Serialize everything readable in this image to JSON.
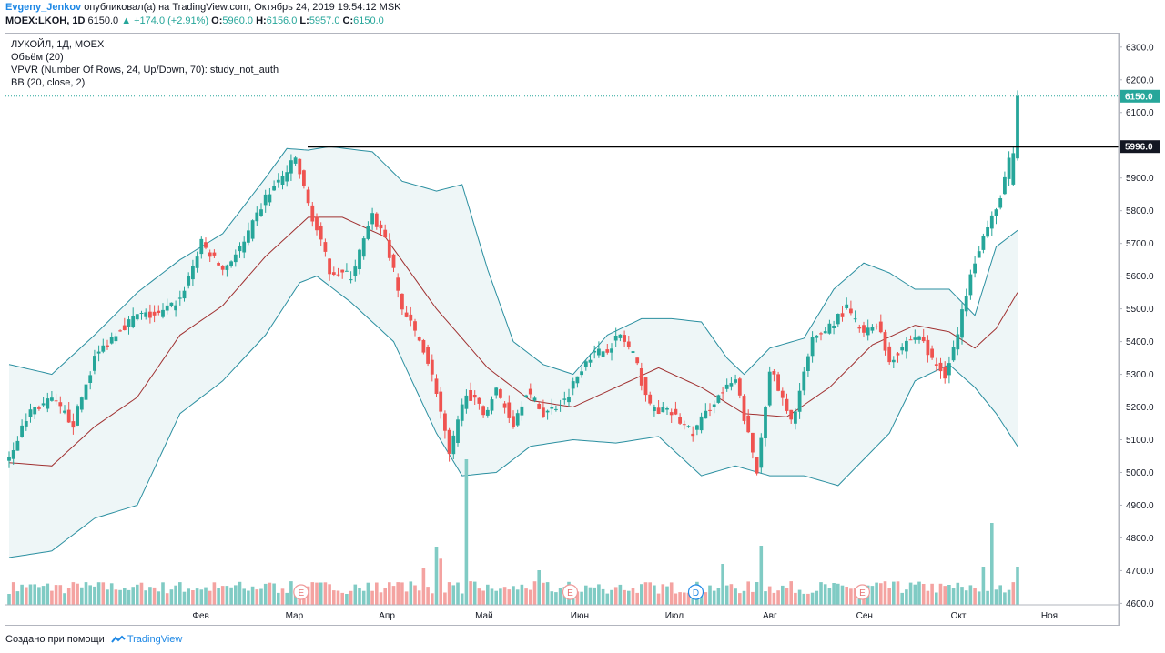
{
  "header": {
    "author": "Evgeny_Jenkov",
    "published": "опубликовал(а) на TradingView.com, Октябрь 24, 2019 19:54:12 MSK",
    "symbol_line": "MOEX:LKOH, 1D",
    "last": "6150.0",
    "change": "▲ +174.0 (+2.91%)",
    "o_label": "O:",
    "o_val": "5960.0",
    "h_label": "H:",
    "h_val": "6156.0",
    "l_label": "L:",
    "l_val": "5957.0",
    "c_label": "C:",
    "c_val": "6150.0"
  },
  "legend": {
    "line1": "ЛУКОЙЛ, 1Д, MOEX",
    "line2": "Объём (20)",
    "line3": "VPVR (Number Of Rows, 24, Up/Down, 70): study_not_auth",
    "line4": "BB (20, close, 2)"
  },
  "footer": {
    "text": "Создано при помощи",
    "brand": "TradingView"
  },
  "colors": {
    "up": "#26a69a",
    "down": "#ef5350",
    "vol_up": "#80cbc4",
    "vol_down": "#f4a3a1",
    "bb_band": "#2a8fa0",
    "bb_mid": "#a03030",
    "bb_fill": "#eef6f7",
    "accent": "#1e88e5"
  },
  "chart_data": {
    "type": "candlestick",
    "ylim": [
      4590,
      6330
    ],
    "yticks": [
      4600,
      4700,
      4800,
      4900,
      5000,
      5100,
      5200,
      5300,
      5400,
      5500,
      5600,
      5700,
      5800,
      5900,
      6000,
      6100,
      6200,
      6300
    ],
    "xlabels": [
      {
        "label": "Фев",
        "pos": 0.1
      },
      {
        "label": "Мар",
        "pos": 0.1992
      },
      {
        "label": "Апр",
        "pos": 0.2974
      },
      {
        "label": "Май",
        "pos": 0.4005
      },
      {
        "label": "Июн",
        "pos": 0.5018
      },
      {
        "label": "Июл",
        "pos": 0.6022
      },
      {
        "label": "Авг",
        "pos": 0.7035
      },
      {
        "label": "Сен",
        "pos": 0.8039
      },
      {
        "label": "Окт",
        "pos": 0.9035
      },
      {
        "label": "Ноя",
        "pos": 1.0
      }
    ],
    "price_badges": [
      {
        "value": 6150.0,
        "text": "6150.0",
        "color": "#26a69a"
      },
      {
        "value": 5996.0,
        "text": "5996.0",
        "color": "#131722"
      }
    ],
    "resistance_line": {
      "value": 5996,
      "from": "2019-04-01",
      "to": "end"
    },
    "events": [
      {
        "letter": "E",
        "pos": 0.2064
      },
      {
        "letter": "E",
        "pos": 0.4918
      },
      {
        "letter": "D",
        "pos": 0.625
      },
      {
        "letter": "E",
        "pos": 0.8015
      }
    ],
    "anchors": [
      {
        "i": 0,
        "p": 5050
      },
      {
        "i": 5,
        "p": 5190
      },
      {
        "i": 10,
        "p": 5220
      },
      {
        "i": 15,
        "p": 5150
      },
      {
        "i": 20,
        "p": 5350
      },
      {
        "i": 25,
        "p": 5430
      },
      {
        "i": 30,
        "p": 5480
      },
      {
        "i": 35,
        "p": 5480
      },
      {
        "i": 40,
        "p": 5530
      },
      {
        "i": 45,
        "p": 5700
      },
      {
        "i": 50,
        "p": 5620
      },
      {
        "i": 55,
        "p": 5700
      },
      {
        "i": 60,
        "p": 5840
      },
      {
        "i": 65,
        "p": 5920
      },
      {
        "i": 67,
        "p": 5960
      },
      {
        "i": 70,
        "p": 5820
      },
      {
        "i": 75,
        "p": 5620
      },
      {
        "i": 80,
        "p": 5600
      },
      {
        "i": 85,
        "p": 5780
      },
      {
        "i": 88,
        "p": 5720
      },
      {
        "i": 92,
        "p": 5500
      },
      {
        "i": 97,
        "p": 5380
      },
      {
        "i": 100,
        "p": 5250
      },
      {
        "i": 103,
        "p": 5050
      },
      {
        "i": 107,
        "p": 5250
      },
      {
        "i": 111,
        "p": 5180
      },
      {
        "i": 114,
        "p": 5250
      },
      {
        "i": 118,
        "p": 5150
      },
      {
        "i": 121,
        "p": 5250
      },
      {
        "i": 125,
        "p": 5180
      },
      {
        "i": 130,
        "p": 5220
      },
      {
        "i": 135,
        "p": 5350
      },
      {
        "i": 140,
        "p": 5380
      },
      {
        "i": 143,
        "p": 5420
      },
      {
        "i": 146,
        "p": 5360
      },
      {
        "i": 150,
        "p": 5200
      },
      {
        "i": 155,
        "p": 5180
      },
      {
        "i": 160,
        "p": 5120
      },
      {
        "i": 165,
        "p": 5220
      },
      {
        "i": 170,
        "p": 5280
      },
      {
        "i": 175,
        "p": 5000
      },
      {
        "i": 178,
        "p": 5320
      },
      {
        "i": 183,
        "p": 5150
      },
      {
        "i": 188,
        "p": 5400
      },
      {
        "i": 192,
        "p": 5450
      },
      {
        "i": 196,
        "p": 5500
      },
      {
        "i": 200,
        "p": 5420
      },
      {
        "i": 203,
        "p": 5460
      },
      {
        "i": 206,
        "p": 5340
      },
      {
        "i": 210,
        "p": 5400
      },
      {
        "i": 213,
        "p": 5420
      },
      {
        "i": 216,
        "p": 5340
      },
      {
        "i": 219,
        "p": 5300
      },
      {
        "i": 222,
        "p": 5420
      },
      {
        "i": 225,
        "p": 5620
      },
      {
        "i": 228,
        "p": 5720
      },
      {
        "i": 231,
        "p": 5800
      },
      {
        "i": 234,
        "p": 5950
      },
      {
        "i": 235,
        "p": 5976
      },
      {
        "i": 236,
        "p": 6150
      }
    ],
    "bb_upper": [
      {
        "i": 0,
        "p": 5330
      },
      {
        "i": 10,
        "p": 5300
      },
      {
        "i": 20,
        "p": 5420
      },
      {
        "i": 30,
        "p": 5550
      },
      {
        "i": 40,
        "p": 5650
      },
      {
        "i": 50,
        "p": 5730
      },
      {
        "i": 60,
        "p": 5900
      },
      {
        "i": 65,
        "p": 5990
      },
      {
        "i": 70,
        "p": 5985
      },
      {
        "i": 75,
        "p": 5996
      },
      {
        "i": 85,
        "p": 5980
      },
      {
        "i": 92,
        "p": 5890
      },
      {
        "i": 100,
        "p": 5860
      },
      {
        "i": 106,
        "p": 5880
      },
      {
        "i": 112,
        "p": 5620
      },
      {
        "i": 118,
        "p": 5400
      },
      {
        "i": 125,
        "p": 5330
      },
      {
        "i": 132,
        "p": 5300
      },
      {
        "i": 140,
        "p": 5420
      },
      {
        "i": 148,
        "p": 5470
      },
      {
        "i": 155,
        "p": 5470
      },
      {
        "i": 162,
        "p": 5460
      },
      {
        "i": 168,
        "p": 5350
      },
      {
        "i": 172,
        "p": 5300
      },
      {
        "i": 178,
        "p": 5380
      },
      {
        "i": 186,
        "p": 5410
      },
      {
        "i": 193,
        "p": 5560
      },
      {
        "i": 200,
        "p": 5640
      },
      {
        "i": 206,
        "p": 5610
      },
      {
        "i": 212,
        "p": 5560
      },
      {
        "i": 220,
        "p": 5560
      },
      {
        "i": 226,
        "p": 5480
      },
      {
        "i": 231,
        "p": 5690
      },
      {
        "i": 236,
        "p": 5740
      }
    ],
    "bb_mid": [
      {
        "i": 0,
        "p": 5030
      },
      {
        "i": 10,
        "p": 5020
      },
      {
        "i": 20,
        "p": 5140
      },
      {
        "i": 30,
        "p": 5230
      },
      {
        "i": 40,
        "p": 5420
      },
      {
        "i": 50,
        "p": 5510
      },
      {
        "i": 60,
        "p": 5660
      },
      {
        "i": 70,
        "p": 5780
      },
      {
        "i": 78,
        "p": 5780
      },
      {
        "i": 88,
        "p": 5720
      },
      {
        "i": 100,
        "p": 5500
      },
      {
        "i": 112,
        "p": 5320
      },
      {
        "i": 122,
        "p": 5220
      },
      {
        "i": 132,
        "p": 5200
      },
      {
        "i": 142,
        "p": 5260
      },
      {
        "i": 152,
        "p": 5320
      },
      {
        "i": 162,
        "p": 5260
      },
      {
        "i": 172,
        "p": 5180
      },
      {
        "i": 182,
        "p": 5170
      },
      {
        "i": 192,
        "p": 5260
      },
      {
        "i": 202,
        "p": 5390
      },
      {
        "i": 212,
        "p": 5450
      },
      {
        "i": 220,
        "p": 5430
      },
      {
        "i": 226,
        "p": 5380
      },
      {
        "i": 231,
        "p": 5440
      },
      {
        "i": 236,
        "p": 5550
      }
    ],
    "bb_lower": [
      {
        "i": 0,
        "p": 4740
      },
      {
        "i": 10,
        "p": 4760
      },
      {
        "i": 20,
        "p": 4860
      },
      {
        "i": 30,
        "p": 4900
      },
      {
        "i": 40,
        "p": 5180
      },
      {
        "i": 50,
        "p": 5280
      },
      {
        "i": 60,
        "p": 5420
      },
      {
        "i": 68,
        "p": 5580
      },
      {
        "i": 72,
        "p": 5600
      },
      {
        "i": 80,
        "p": 5520
      },
      {
        "i": 90,
        "p": 5400
      },
      {
        "i": 100,
        "p": 5120
      },
      {
        "i": 106,
        "p": 4990
      },
      {
        "i": 114,
        "p": 5000
      },
      {
        "i": 122,
        "p": 5080
      },
      {
        "i": 132,
        "p": 5100
      },
      {
        "i": 142,
        "p": 5090
      },
      {
        "i": 152,
        "p": 5110
      },
      {
        "i": 162,
        "p": 4990
      },
      {
        "i": 170,
        "p": 5020
      },
      {
        "i": 178,
        "p": 4990
      },
      {
        "i": 186,
        "p": 4990
      },
      {
        "i": 194,
        "p": 4960
      },
      {
        "i": 200,
        "p": 5040
      },
      {
        "i": 206,
        "p": 5120
      },
      {
        "i": 212,
        "p": 5280
      },
      {
        "i": 220,
        "p": 5330
      },
      {
        "i": 226,
        "p": 5260
      },
      {
        "i": 231,
        "p": 5180
      },
      {
        "i": 236,
        "p": 5080
      }
    ]
  }
}
